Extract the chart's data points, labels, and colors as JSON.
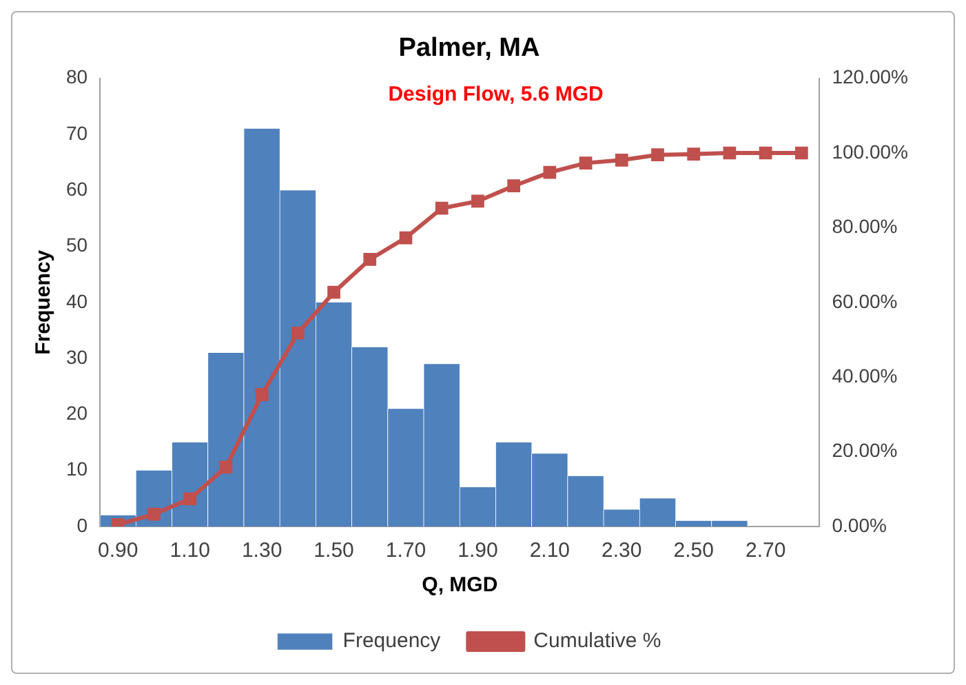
{
  "chart_data": {
    "type": "bar",
    "title": "Palmer, MA",
    "xlabel": "Q, MGD",
    "ylabel": "Frequency",
    "annotations": [
      "Design Flow, 5.6 MGD"
    ],
    "categories": [
      "0.90",
      null,
      "1.10",
      null,
      "1.30",
      null,
      "1.50",
      null,
      "1.70",
      null,
      "1.90",
      null,
      "2.10",
      null,
      "2.30",
      null,
      "2.50",
      null,
      "2.70",
      null
    ],
    "series": [
      {
        "name": "Frequency",
        "color": "#4f81bd",
        "values": [
          2,
          10,
          15,
          31,
          71,
          60,
          40,
          32,
          21,
          29,
          7,
          15,
          13,
          9,
          3,
          5,
          1,
          1,
          0,
          0
        ]
      },
      {
        "name": "Cumulative %",
        "type": "line",
        "axis": "y2",
        "color": "#c0504d",
        "values": [
          0.5,
          3.3,
          7.4,
          15.9,
          35.3,
          51.8,
          62.7,
          71.5,
          77.3,
          85.2,
          87.1,
          91.2,
          94.8,
          97.3,
          98.1,
          99.5,
          99.7,
          100,
          100,
          100
        ]
      }
    ],
    "ylim": [
      0,
      80
    ],
    "yticks": [
      0,
      10,
      20,
      30,
      40,
      50,
      60,
      70,
      80
    ],
    "y2lim": [
      0,
      120
    ],
    "y2ticks": [
      {
        "value": 0,
        "label": "0.00%"
      },
      {
        "value": 20,
        "label": "20.00%"
      },
      {
        "value": 40,
        "label": "40.00%"
      },
      {
        "value": 60,
        "label": "60.00%"
      },
      {
        "value": 80,
        "label": "80.00%"
      },
      {
        "value": 100,
        "label": "100.00%"
      },
      {
        "value": 120,
        "label": "120.00%"
      }
    ],
    "grid": false,
    "legend": "bottom",
    "marker": "square"
  }
}
